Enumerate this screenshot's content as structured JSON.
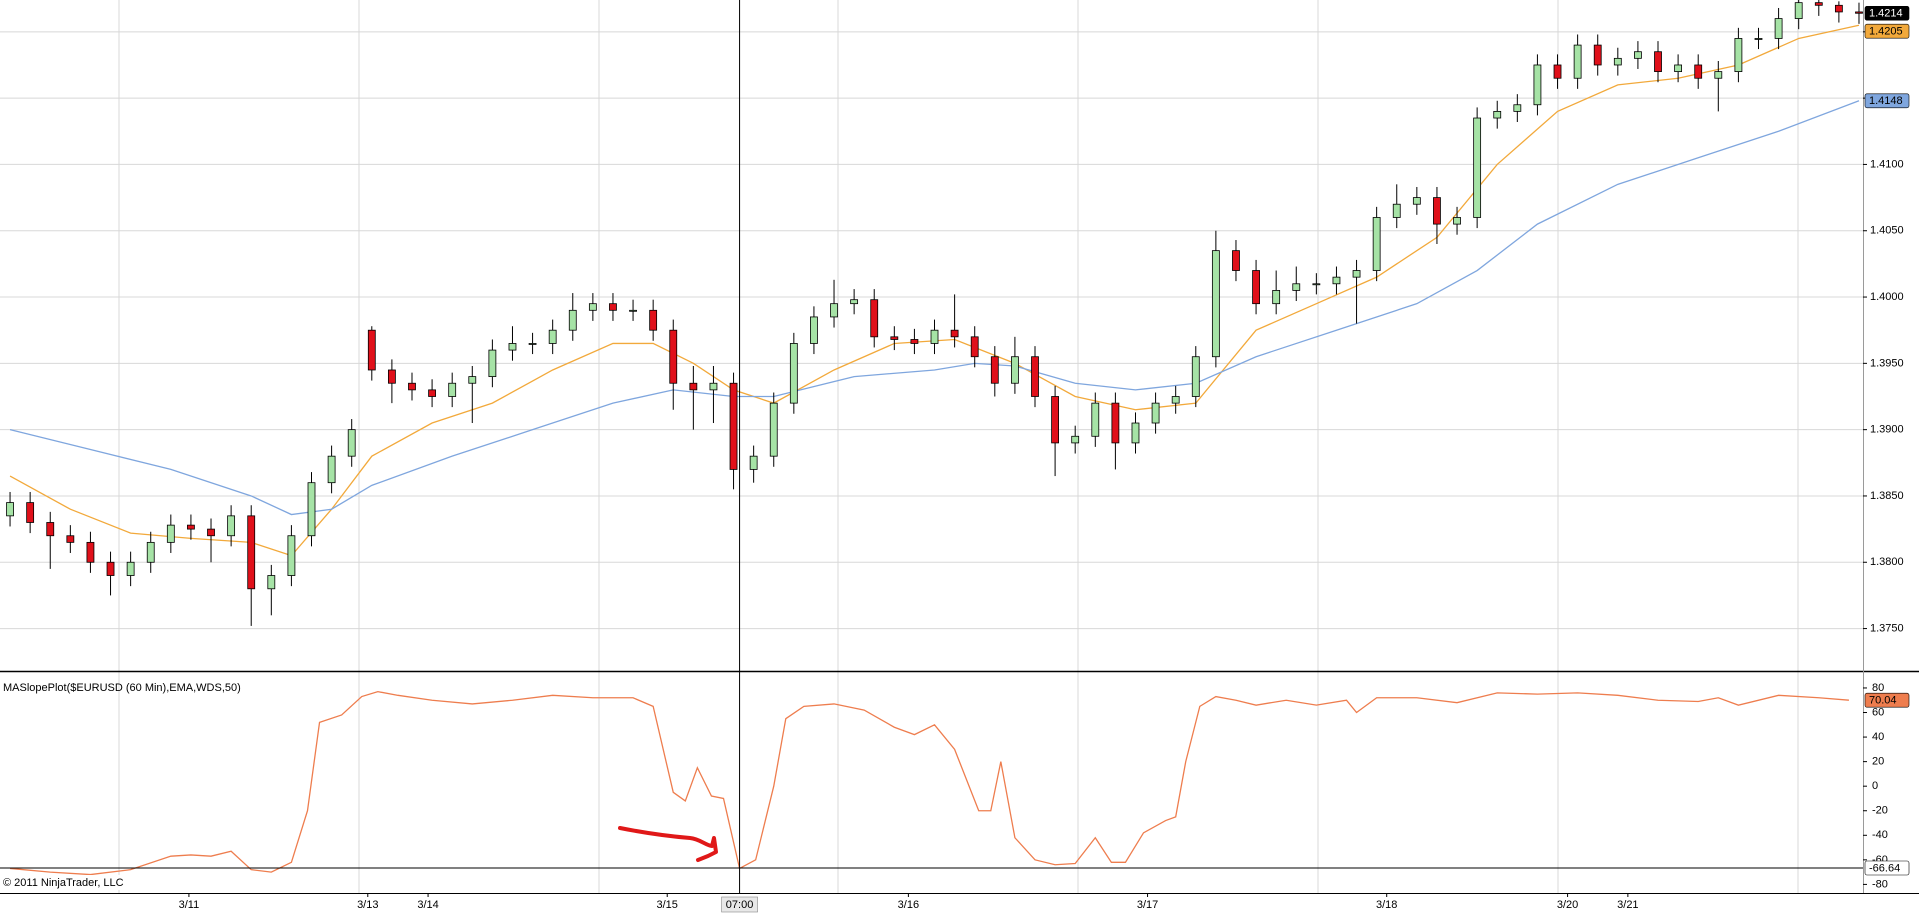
{
  "chart_data": [
    {
      "type": "candlestick",
      "xlim": [
        -0.5,
        92.2
      ],
      "ylim": [
        1.3718,
        1.4224
      ],
      "grid": true,
      "up_color": "#a6e3a6",
      "down_color": "#e0101a",
      "xticks": [
        {
          "value": 8.9,
          "label": "3/11"
        },
        {
          "value": 17.8,
          "label": "3/13"
        },
        {
          "value": 20.8,
          "label": "3/14"
        },
        {
          "value": 32.7,
          "label": "3/15"
        },
        {
          "value": 44.7,
          "label": "3/16"
        },
        {
          "value": 56.6,
          "label": "3/17"
        },
        {
          "value": 68.5,
          "label": "3/18"
        },
        {
          "value": 77.5,
          "label": "3/20"
        },
        {
          "value": 80.5,
          "label": "3/21"
        }
      ],
      "yticks": [
        {
          "value": 1.375,
          "label": "1.3750"
        },
        {
          "value": 1.38,
          "label": "1.3800"
        },
        {
          "value": 1.385,
          "label": "1.3850"
        },
        {
          "value": 1.39,
          "label": "1.3900"
        },
        {
          "value": 1.395,
          "label": "1.3950"
        },
        {
          "value": 1.4,
          "label": "1.4000"
        },
        {
          "value": 1.405,
          "label": "1.4050"
        },
        {
          "value": 1.41,
          "label": "1.4100"
        },
        {
          "value": 1.415,
          "label": "1.4150"
        },
        {
          "value": 1.42,
          "label": "1.4200"
        }
      ],
      "open": [
        1.3835,
        1.3845,
        1.383,
        1.382,
        1.3815,
        1.38,
        1.379,
        1.38,
        1.3815,
        1.3828,
        1.3825,
        1.382,
        1.3835,
        1.378,
        1.379,
        1.382,
        1.386,
        1.388,
        1.3975,
        1.3945,
        1.3935,
        1.393,
        1.3925,
        1.3935,
        1.394,
        1.396,
        1.3965,
        1.3965,
        1.3975,
        1.399,
        1.3995,
        1.399,
        1.399,
        1.3975,
        1.3935,
        1.393,
        1.3935,
        1.387,
        1.388,
        1.392,
        1.3965,
        1.3985,
        1.3995,
        1.3998,
        1.397,
        1.3968,
        1.3965,
        1.3975,
        1.397,
        1.3955,
        1.3935,
        1.3955,
        1.3925,
        1.389,
        1.3895,
        1.392,
        1.389,
        1.3905,
        1.392,
        1.3925,
        1.3955,
        1.4035,
        1.402,
        1.3995,
        1.4005,
        1.401,
        1.401,
        1.4015,
        1.402,
        1.406,
        1.407,
        1.4075,
        1.4055,
        1.406,
        1.4135,
        1.414,
        1.4145,
        1.4175,
        1.4165,
        1.419,
        1.4175,
        1.418,
        1.4185,
        1.417,
        1.4175,
        1.4165,
        1.417,
        1.4195,
        1.4195,
        1.421,
        1.4222,
        1.422,
        1.4215
      ],
      "high": [
        1.3853,
        1.3853,
        1.3838,
        1.3828,
        1.3823,
        1.3808,
        1.3808,
        1.3823,
        1.3836,
        1.3836,
        1.3833,
        1.3843,
        1.3843,
        1.3798,
        1.3828,
        1.3868,
        1.3888,
        1.3908,
        1.3978,
        1.3953,
        1.3943,
        1.3938,
        1.3943,
        1.3948,
        1.3968,
        1.3978,
        1.3973,
        1.3983,
        1.4003,
        1.4003,
        1.4003,
        1.3998,
        1.3998,
        1.3983,
        1.3948,
        1.3948,
        1.3943,
        1.3888,
        1.3928,
        1.3973,
        1.3993,
        1.4013,
        1.4006,
        1.4006,
        1.3978,
        1.3976,
        1.3983,
        1.4002,
        1.3978,
        1.3963,
        1.397,
        1.3963,
        1.3933,
        1.3903,
        1.3928,
        1.3928,
        1.3913,
        1.3928,
        1.3933,
        1.3963,
        1.405,
        1.4043,
        1.4028,
        1.402,
        1.4023,
        1.4018,
        1.4023,
        1.4028,
        1.4068,
        1.4085,
        1.4083,
        1.4083,
        1.4068,
        1.4143,
        1.4148,
        1.4153,
        1.4183,
        1.4183,
        1.4198,
        1.4198,
        1.4188,
        1.4193,
        1.4193,
        1.4183,
        1.4183,
        1.4178,
        1.4203,
        1.4203,
        1.4218,
        1.423,
        1.4228,
        1.4223,
        1.4222
      ],
      "low": [
        1.3827,
        1.3822,
        1.3795,
        1.3807,
        1.3792,
        1.3775,
        1.3782,
        1.3792,
        1.3807,
        1.3817,
        1.38,
        1.3812,
        1.3752,
        1.376,
        1.3782,
        1.3812,
        1.3852,
        1.3872,
        1.3937,
        1.392,
        1.3922,
        1.3917,
        1.3917,
        1.3905,
        1.3932,
        1.3952,
        1.3957,
        1.3957,
        1.3967,
        1.3982,
        1.3982,
        1.3982,
        1.3967,
        1.3915,
        1.39,
        1.3905,
        1.3855,
        1.386,
        1.3872,
        1.3912,
        1.3957,
        1.3977,
        1.3987,
        1.3962,
        1.396,
        1.3957,
        1.3957,
        1.3962,
        1.3947,
        1.3925,
        1.3927,
        1.3917,
        1.3865,
        1.3882,
        1.3887,
        1.387,
        1.3882,
        1.3897,
        1.3912,
        1.3917,
        1.3947,
        1.4012,
        1.3987,
        1.3987,
        1.3997,
        1.4002,
        1.4002,
        1.398,
        1.4012,
        1.4052,
        1.4062,
        1.404,
        1.4047,
        1.4052,
        1.4127,
        1.4132,
        1.4137,
        1.4157,
        1.4157,
        1.4167,
        1.4167,
        1.4172,
        1.4162,
        1.4162,
        1.4157,
        1.414,
        1.4162,
        1.4187,
        1.4187,
        1.4202,
        1.4212,
        1.4207,
        1.4206
      ],
      "close": [
        1.3845,
        1.383,
        1.382,
        1.3815,
        1.38,
        1.379,
        1.38,
        1.3815,
        1.3828,
        1.3825,
        1.382,
        1.3835,
        1.378,
        1.379,
        1.382,
        1.386,
        1.388,
        1.39,
        1.3945,
        1.3935,
        1.393,
        1.3925,
        1.3935,
        1.394,
        1.396,
        1.3965,
        1.3965,
        1.3975,
        1.399,
        1.3995,
        1.399,
        1.399,
        1.3975,
        1.3935,
        1.393,
        1.3935,
        1.387,
        1.388,
        1.392,
        1.3965,
        1.3985,
        1.3995,
        1.3998,
        1.397,
        1.3968,
        1.3965,
        1.3975,
        1.397,
        1.3955,
        1.3935,
        1.3955,
        1.3925,
        1.389,
        1.3895,
        1.392,
        1.389,
        1.3905,
        1.392,
        1.3925,
        1.3955,
        1.4035,
        1.402,
        1.3995,
        1.4005,
        1.401,
        1.401,
        1.4015,
        1.402,
        1.406,
        1.407,
        1.4075,
        1.4055,
        1.406,
        1.4135,
        1.414,
        1.4145,
        1.4175,
        1.4165,
        1.419,
        1.4175,
        1.418,
        1.4185,
        1.417,
        1.4175,
        1.4165,
        1.417,
        1.4195,
        1.4195,
        1.421,
        1.4222,
        1.422,
        1.4215,
        1.4214
      ],
      "series": [
        {
          "color": "#f2a93b",
          "x": [
            0,
            3,
            6,
            9,
            12,
            14,
            16,
            18,
            21,
            24,
            27,
            30,
            32,
            34,
            36,
            38,
            41,
            44,
            47,
            50,
            53,
            56,
            59,
            62,
            65,
            68,
            71,
            74,
            77,
            80,
            83,
            86,
            89,
            92
          ],
          "values": [
            1.3865,
            1.384,
            1.3822,
            1.3818,
            1.3815,
            1.3805,
            1.384,
            1.388,
            1.3905,
            1.392,
            1.3945,
            1.3965,
            1.3965,
            1.395,
            1.393,
            1.392,
            1.3945,
            1.3965,
            1.3968,
            1.395,
            1.3925,
            1.3915,
            1.392,
            1.3975,
            1.3995,
            1.4015,
            1.4045,
            1.41,
            1.414,
            1.416,
            1.4165,
            1.4175,
            1.4195,
            1.4205
          ]
        },
        {
          "color": "#7fa6de",
          "x": [
            0,
            4,
            8,
            12,
            14,
            16,
            18,
            22,
            26,
            30,
            33,
            36,
            38,
            42,
            46,
            48,
            50,
            53,
            56,
            59,
            62,
            66,
            70,
            73,
            76,
            80,
            84,
            88,
            92
          ],
          "values": [
            1.39,
            1.3885,
            1.387,
            1.385,
            1.3836,
            1.384,
            1.3858,
            1.388,
            1.39,
            1.392,
            1.393,
            1.3925,
            1.3925,
            1.394,
            1.3945,
            1.395,
            1.3948,
            1.3935,
            1.393,
            1.3935,
            1.3955,
            1.3975,
            1.3995,
            1.402,
            1.4055,
            1.4085,
            1.4105,
            1.4125,
            1.4148
          ]
        }
      ]
    },
    {
      "type": "line",
      "title": "MASlopePlot($EURUSD (60 Min),EMA,WDS,50)",
      "xlim": [
        -0.5,
        92.2
      ],
      "ylim": [
        -87,
        93
      ],
      "yticks": [
        -80,
        -60,
        -40,
        -20,
        0,
        20,
        40,
        60,
        80
      ],
      "series": [
        {
          "color": "#ee7d4e",
          "x": [
            0,
            2,
            4,
            6,
            8,
            9,
            10,
            11,
            12,
            13,
            14,
            14.8,
            15.4,
            16.5,
            17.5,
            18.3,
            19.3,
            21,
            23,
            25,
            27,
            29,
            31,
            32,
            33,
            33.6,
            34.2,
            34.9,
            35.5,
            36.3,
            37.1,
            38,
            38.6,
            39.5,
            41,
            42.5,
            44,
            45,
            46,
            47,
            48.2,
            48.8,
            49.3,
            50,
            51,
            52,
            53,
            54,
            54.8,
            55.5,
            56.4,
            57.5,
            58,
            58.5,
            59.2,
            60,
            61,
            62,
            63.5,
            65,
            66.5,
            67,
            68,
            70,
            72,
            74,
            76,
            78,
            80,
            82,
            84,
            85,
            86,
            88,
            90,
            91.5
          ],
          "values": [
            -67,
            -70,
            -72,
            -68,
            -57,
            -56,
            -57,
            -53,
            -68,
            -70,
            -62,
            -20,
            52,
            58,
            73,
            77,
            74,
            70,
            67,
            70,
            74,
            72,
            72,
            65,
            -5,
            -12,
            15,
            -8,
            -10,
            -67,
            -60,
            0,
            55,
            65,
            67,
            62,
            48,
            42,
            50,
            30,
            -20,
            -20,
            20,
            -42,
            -60,
            -64,
            -63,
            -42,
            -62,
            -62,
            -38,
            -28,
            -25,
            20,
            65,
            73,
            70,
            66,
            70,
            66,
            70,
            60,
            72,
            72,
            68,
            76,
            75,
            76,
            74,
            70,
            69,
            72,
            66,
            74,
            72,
            70.04
          ]
        }
      ],
      "crosshair": {
        "x": {
          "value": 36.3,
          "label": "07:00"
        },
        "y": -66.64
      }
    }
  ],
  "copyright": "© 2011 NinjaTrader, LLC"
}
